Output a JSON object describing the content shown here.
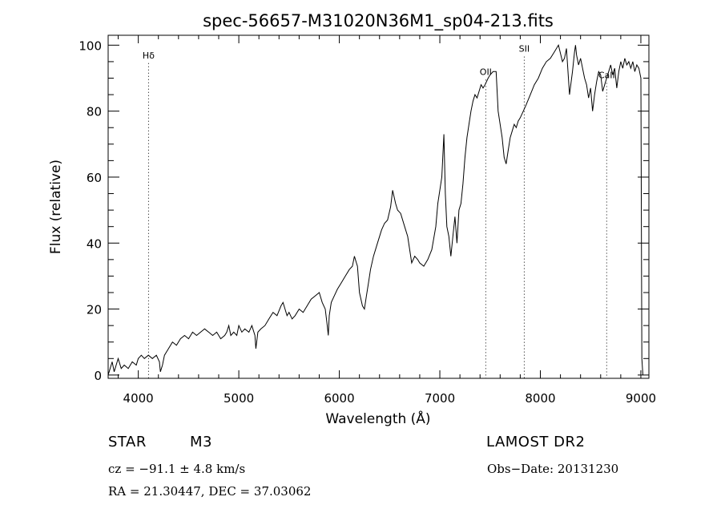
{
  "chart_data": {
    "type": "line",
    "title": "spec-56657-M31020N36M1_sp04-213.fits",
    "xlabel": "Wavelength (Å)",
    "ylabel": "Flux (relative)",
    "xlim": [
      3700,
      9080
    ],
    "ylim": [
      -1,
      103
    ],
    "x_ticks": [
      4000,
      5000,
      6000,
      7000,
      8000,
      9000
    ],
    "x_tick_labels": [
      "4000",
      "5000",
      "6000",
      "7000",
      "8000",
      "9000"
    ],
    "y_ticks": [
      0,
      20,
      40,
      60,
      80,
      100
    ],
    "y_tick_labels": [
      "0",
      "20",
      "40",
      "60",
      "80",
      "100"
    ],
    "grid": false,
    "series": [
      {
        "x": [
          3700,
          3720,
          3740,
          3760,
          3780,
          3800,
          3830,
          3860,
          3900,
          3940,
          3980,
          4000,
          4030,
          4060,
          4100,
          4140,
          4180,
          4210,
          4220,
          4240,
          4260,
          4300,
          4340,
          4380,
          4420,
          4460,
          4500,
          4540,
          4580,
          4620,
          4660,
          4700,
          4740,
          4780,
          4820,
          4860,
          4880,
          4900,
          4920,
          4950,
          4980,
          5000,
          5030,
          5060,
          5100,
          5130,
          5160,
          5170,
          5190,
          5220,
          5260,
          5300,
          5340,
          5380,
          5420,
          5440,
          5460,
          5480,
          5500,
          5530,
          5560,
          5600,
          5640,
          5680,
          5720,
          5760,
          5800,
          5830,
          5860,
          5880,
          5890,
          5900,
          5920,
          5950,
          5980,
          6020,
          6060,
          6100,
          6130,
          6150,
          6170,
          6180,
          6200,
          6230,
          6250,
          6270,
          6290,
          6310,
          6340,
          6380,
          6420,
          6450,
          6480,
          6510,
          6530,
          6560,
          6580,
          6610,
          6650,
          6680,
          6700,
          6720,
          6750,
          6780,
          6800,
          6840,
          6880,
          6920,
          6960,
          6980,
          7000,
          7020,
          7040,
          7055,
          7070,
          7090,
          7110,
          7130,
          7150,
          7170,
          7190,
          7210,
          7230,
          7250,
          7270,
          7290,
          7310,
          7330,
          7350,
          7370,
          7390,
          7410,
          7430,
          7450,
          7480,
          7500,
          7530,
          7560,
          7580,
          7600,
          7620,
          7640,
          7660,
          7680,
          7700,
          7720,
          7740,
          7760,
          7780,
          7800,
          7830,
          7860,
          7900,
          7940,
          7980,
          8020,
          8060,
          8100,
          8140,
          8180,
          8220,
          8240,
          8260,
          8290,
          8320,
          8340,
          8350,
          8360,
          8380,
          8400,
          8420,
          8440,
          8460,
          8480,
          8500,
          8520,
          8540,
          8560,
          8580,
          8600,
          8620,
          8640,
          8660,
          8680,
          8700,
          8720,
          8740,
          8760,
          8780,
          8800,
          8820,
          8840,
          8860,
          8880,
          8900,
          8920,
          8940,
          8960,
          8980,
          9000,
          9010,
          9020
        ],
        "y": [
          0,
          2,
          4,
          1,
          3,
          5,
          2,
          3,
          2,
          4,
          3,
          5,
          6,
          5,
          6,
          5,
          6,
          4,
          1,
          3,
          6,
          8,
          10,
          9,
          11,
          12,
          11,
          13,
          12,
          13,
          14,
          13,
          12,
          13,
          11,
          12,
          13,
          15,
          12,
          13,
          12,
          15,
          13,
          14,
          13,
          15,
          12,
          8,
          13,
          14,
          15,
          17,
          19,
          18,
          21,
          22,
          20,
          18,
          19,
          17,
          18,
          20,
          19,
          21,
          23,
          24,
          25,
          22,
          20,
          15,
          12,
          18,
          22,
          24,
          26,
          28,
          30,
          32,
          33,
          36,
          34,
          33,
          25,
          21,
          20,
          24,
          28,
          32,
          36,
          40,
          44,
          46,
          47,
          51,
          56,
          52,
          50,
          49,
          45,
          42,
          38,
          34,
          36,
          35,
          34,
          33,
          35,
          38,
          45,
          52,
          56,
          60,
          73,
          55,
          45,
          42,
          36,
          42,
          48,
          40,
          50,
          52,
          58,
          66,
          72,
          76,
          80,
          83,
          85,
          84,
          86,
          88,
          87,
          88,
          90,
          91,
          92,
          92,
          80,
          76,
          72,
          66,
          64,
          68,
          72,
          74,
          76,
          75,
          77,
          78,
          80,
          82,
          85,
          88,
          90,
          93,
          95,
          96,
          98,
          100,
          95,
          96,
          99,
          85,
          92,
          98,
          100,
          97,
          94,
          96,
          93,
          90,
          88,
          84,
          87,
          80,
          85,
          89,
          92,
          91,
          86,
          88,
          90,
          92,
          94,
          91,
          93,
          87,
          92,
          95,
          93,
          96,
          94,
          95,
          93,
          95,
          92,
          94,
          93,
          90,
          5,
          0
        ]
      }
    ],
    "line_markers": [
      {
        "x": 4102,
        "label": "Hδ",
        "label_y": 96
      },
      {
        "x": 7457,
        "label": "OII",
        "label_y": 91
      },
      {
        "x": 7840,
        "label": "SII",
        "label_y": 98
      },
      {
        "x": 8660,
        "label": "CaII",
        "label_y": 90
      }
    ]
  },
  "info": {
    "object_class": "STAR",
    "subclass": "M3",
    "survey": "LAMOST DR2",
    "redshift": "cz = −91.1 ± 4.8 km/s",
    "obs_date": "Obs−Date: 20131230",
    "coords": "RA =  21.30447, DEC =  37.03062"
  }
}
